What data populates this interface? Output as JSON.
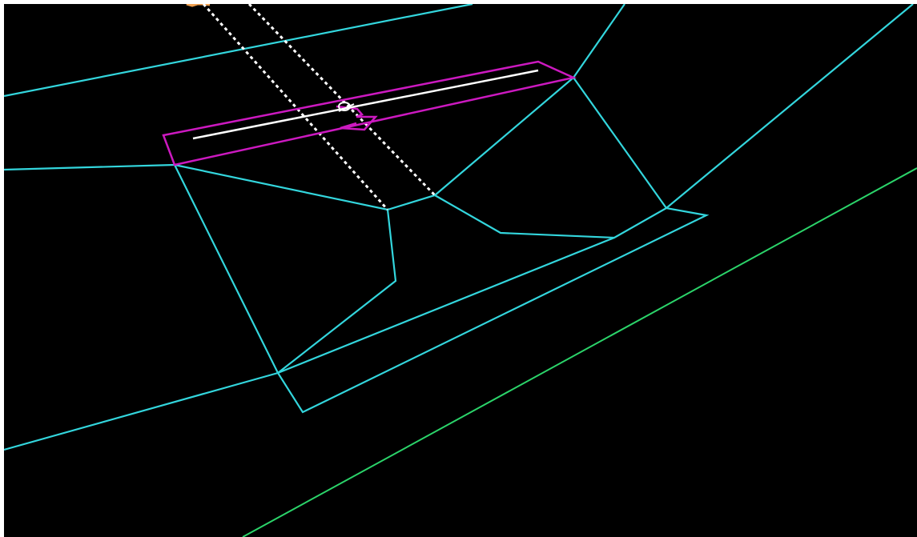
{
  "canvas": {
    "background": "#000000",
    "frame_color": "#ffffff"
  },
  "layers": {
    "contours": {
      "color": "#33d6dd"
    },
    "boundary": {
      "color": "#2bd46a"
    },
    "selection": {
      "color": "#cc19c0"
    },
    "centerline": {
      "color": "#ffffff"
    },
    "guides": {
      "color": "#ffffff"
    },
    "marker": {
      "color": "#f0a050"
    }
  }
}
